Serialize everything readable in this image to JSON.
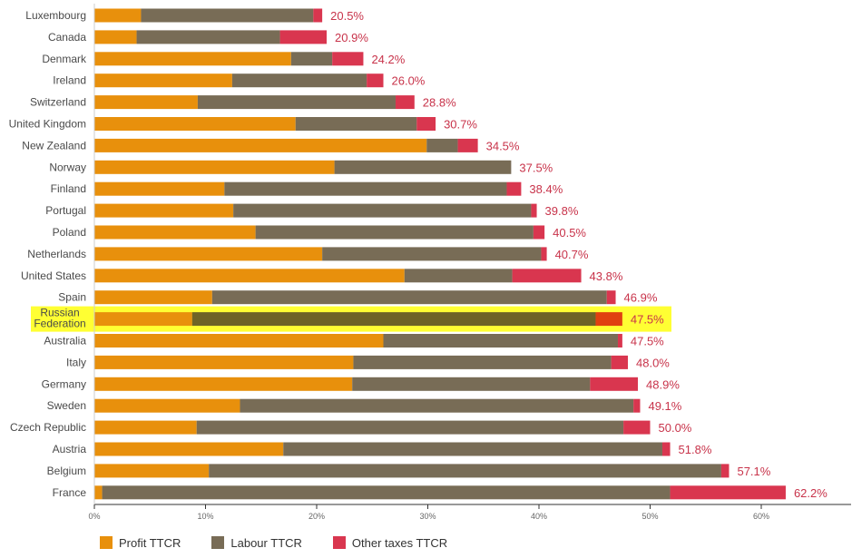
{
  "chart_data": {
    "type": "bar",
    "orientation": "horizontal",
    "stacked": true,
    "categories": [
      "Luxembourg",
      "Canada",
      "Denmark",
      "Ireland",
      "Switzerland",
      "United Kingdom",
      "New Zealand",
      "Norway",
      "Finland",
      "Portugal",
      "Poland",
      "Netherlands",
      "United States",
      "Spain",
      "Russian Federation",
      "Australia",
      "Italy",
      "Germany",
      "Sweden",
      "Czech Republic",
      "Austria",
      "Belgium",
      "France"
    ],
    "series": [
      {
        "name": "Profit TTCR",
        "color": "#e8900c",
        "values": [
          4.2,
          3.8,
          17.7,
          12.4,
          9.3,
          18.1,
          29.9,
          21.6,
          11.7,
          12.5,
          14.5,
          20.5,
          27.9,
          10.6,
          8.8,
          26.0,
          23.3,
          23.2,
          13.1,
          9.2,
          17.0,
          10.3,
          0.7
        ]
      },
      {
        "name": "Labour TTCR",
        "color": "#786c56",
        "values": [
          15.5,
          12.9,
          3.7,
          12.1,
          17.8,
          10.9,
          2.8,
          15.9,
          25.4,
          26.8,
          25.0,
          19.7,
          9.7,
          35.5,
          36.3,
          21.1,
          23.2,
          21.4,
          35.4,
          38.4,
          34.1,
          46.1,
          51.1
        ]
      },
      {
        "name": "Other taxes TTCR",
        "color": "#d9364f",
        "values": [
          0.8,
          4.2,
          2.8,
          1.5,
          1.7,
          1.7,
          1.8,
          0.0,
          1.3,
          0.5,
          1.0,
          0.5,
          6.2,
          0.8,
          2.4,
          0.4,
          1.5,
          4.3,
          0.6,
          2.4,
          0.7,
          0.7,
          10.4
        ]
      }
    ],
    "totals": [
      "20.5%",
      "20.9%",
      "24.2%",
      "26.0%",
      "28.8%",
      "30.7%",
      "34.5%",
      "37.5%",
      "38.4%",
      "39.8%",
      "40.5%",
      "40.7%",
      "43.8%",
      "46.9%",
      "47.5%",
      "47.5%",
      "48.0%",
      "48.9%",
      "49.1%",
      "50.0%",
      "51.8%",
      "57.1%",
      "62.2%"
    ],
    "highlight": {
      "category": "Russian Federation",
      "label_lines": [
        "Russian",
        "Federation"
      ],
      "color": "#ffff33",
      "bar_colors": [
        "#e8900c",
        "#6e6426",
        "#e04010"
      ]
    },
    "x_ticks": [
      "0%",
      "10%",
      "20%",
      "30%",
      "40%",
      "50%",
      "60%"
    ],
    "xlim": [
      0,
      68
    ],
    "grid": false,
    "legend_position": "bottom-left"
  }
}
